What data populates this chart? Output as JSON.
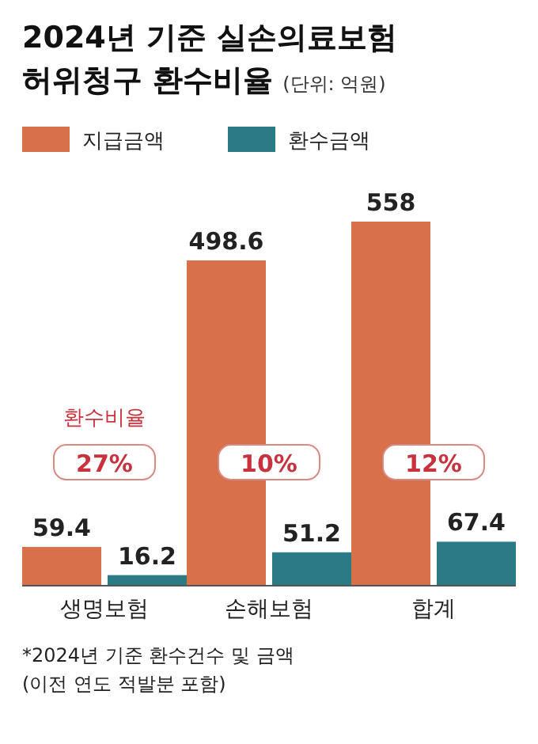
{
  "chart_data": {
    "type": "bar",
    "title": "2024년 기준 실손의료보험 허위청구 환수비율",
    "subtitle": "(단위: 억원)",
    "categories": [
      "생명보험",
      "손해보험",
      "합계"
    ],
    "series": [
      {
        "name": "지급금액",
        "color": "#d9704c",
        "values": [
          59.4,
          498.6,
          558
        ]
      },
      {
        "name": "환수금액",
        "color": "#2b7b86",
        "values": [
          16.2,
          51.2,
          67.4
        ]
      }
    ],
    "data_labels": true,
    "legend": "top left",
    "annotations": [
      "환수비율",
      "27%",
      "10%",
      "12%",
      "*2024년 기준 환수건수 및 금액",
      "(이전 연도 적발분 포함)"
    ]
  }
}
